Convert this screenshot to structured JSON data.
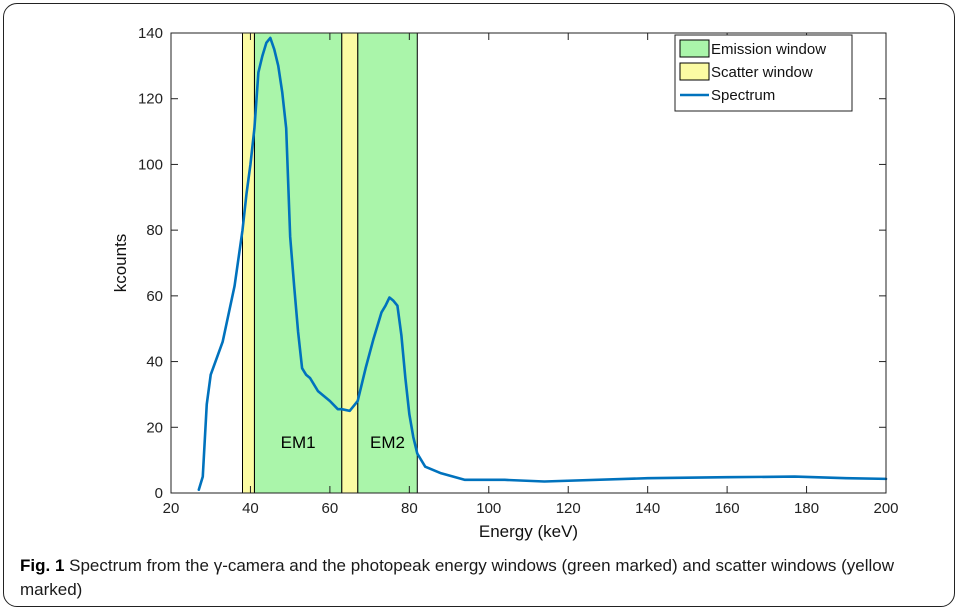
{
  "figure": {
    "caption_label": "Fig. 1",
    "caption_text": "Spectrum from the γ-camera and the photopeak energy windows (green marked) and scatter windows (yellow marked)"
  },
  "chart_data": {
    "type": "line",
    "xlabel": "Energy (keV)",
    "ylabel": "kcounts",
    "xlim": [
      20,
      200
    ],
    "ylim": [
      0,
      140
    ],
    "xticks": [
      20,
      40,
      60,
      80,
      100,
      120,
      140,
      160,
      180,
      200
    ],
    "yticks": [
      0,
      20,
      40,
      60,
      80,
      100,
      120,
      140
    ],
    "grid": false,
    "legend_position": "top-right",
    "legend": [
      {
        "label": "Emission window",
        "kind": "patch",
        "color": "#aaf5aa"
      },
      {
        "label": "Scatter window",
        "kind": "patch",
        "color": "#fbfba3"
      },
      {
        "label": "Spectrum",
        "kind": "line",
        "color": "#0072bd"
      }
    ],
    "emission_windows": [
      {
        "x0": 41,
        "x1": 63
      },
      {
        "x0": 67,
        "x1": 82
      }
    ],
    "scatter_windows": [
      {
        "x0": 38,
        "x1": 41
      },
      {
        "x0": 63,
        "x1": 67
      }
    ],
    "annotations": [
      {
        "text": "EM1",
        "x": 52,
        "y": 15
      },
      {
        "text": "EM2",
        "x": 74.5,
        "y": 15
      }
    ],
    "series": [
      {
        "name": "Spectrum",
        "color": "#0072bd",
        "x": [
          27,
          28,
          29,
          30,
          33,
          36,
          38,
          39,
          40,
          41,
          42,
          43,
          44,
          45,
          46,
          47,
          48,
          49,
          50,
          51,
          52,
          53,
          54,
          55,
          56,
          57,
          60,
          62,
          63,
          65,
          66,
          67,
          69,
          71,
          73,
          74,
          75,
          76,
          77,
          78,
          79,
          80,
          81,
          82,
          84,
          88,
          94,
          104,
          114,
          140,
          160,
          177,
          190,
          200
        ],
        "y": [
          1,
          5,
          27,
          36,
          46,
          63,
          80,
          91,
          100,
          111,
          128,
          133,
          137,
          138.5,
          135,
          130,
          122,
          111,
          78,
          63,
          49,
          38,
          36,
          35,
          33,
          31,
          28,
          25.5,
          25.5,
          25,
          26.5,
          28,
          38,
          47,
          55,
          57,
          59.5,
          58.5,
          57,
          48,
          35,
          24,
          17,
          12,
          8,
          6,
          4,
          4,
          3.5,
          4.5,
          4.8,
          5,
          4.5,
          4.3
        ]
      }
    ]
  }
}
